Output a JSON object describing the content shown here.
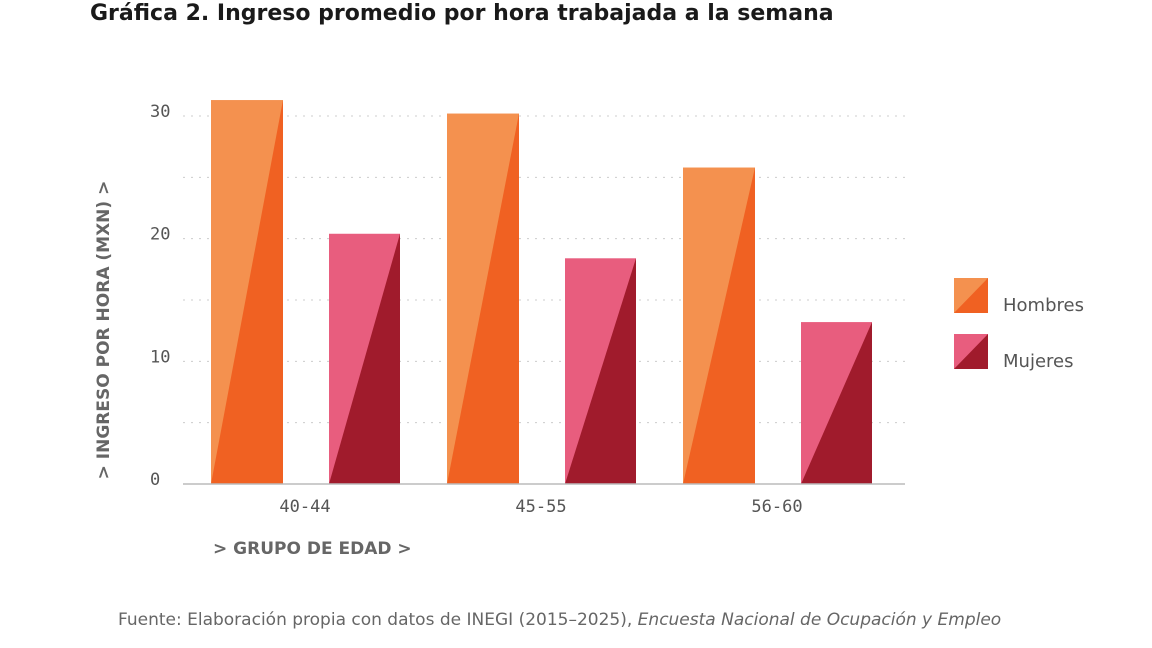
{
  "chart_data": {
    "type": "bar",
    "title": "Gráfica 2. Ingreso promedio por hora trabajada a la semana",
    "y_label": "> INGRESO POR HORA (MXN) >",
    "x_label": "> GRUPO DE EDAD >",
    "categories": [
      "40-44",
      "45-55",
      "56-60"
    ],
    "series": [
      {
        "name": "Hombres",
        "color": "#f4914f",
        "shade": "#f06122",
        "values": [
          31.3,
          30.2,
          25.8
        ]
      },
      {
        "name": "Mujeres",
        "color": "#e85d7e",
        "shade": "#a01b2c",
        "values": [
          20.4,
          18.4,
          13.2
        ]
      }
    ],
    "ylim": [
      0,
      30
    ],
    "yticks": [
      0,
      10,
      20,
      30
    ],
    "minor_yticks": [
      5,
      15,
      25
    ],
    "grid": true,
    "legend": "right",
    "source": "Fuente: Elaboración propia con datos de INEGI (2015–2025), ",
    "source_italic": "Encuesta Nacional de Ocupación y Empleo"
  }
}
